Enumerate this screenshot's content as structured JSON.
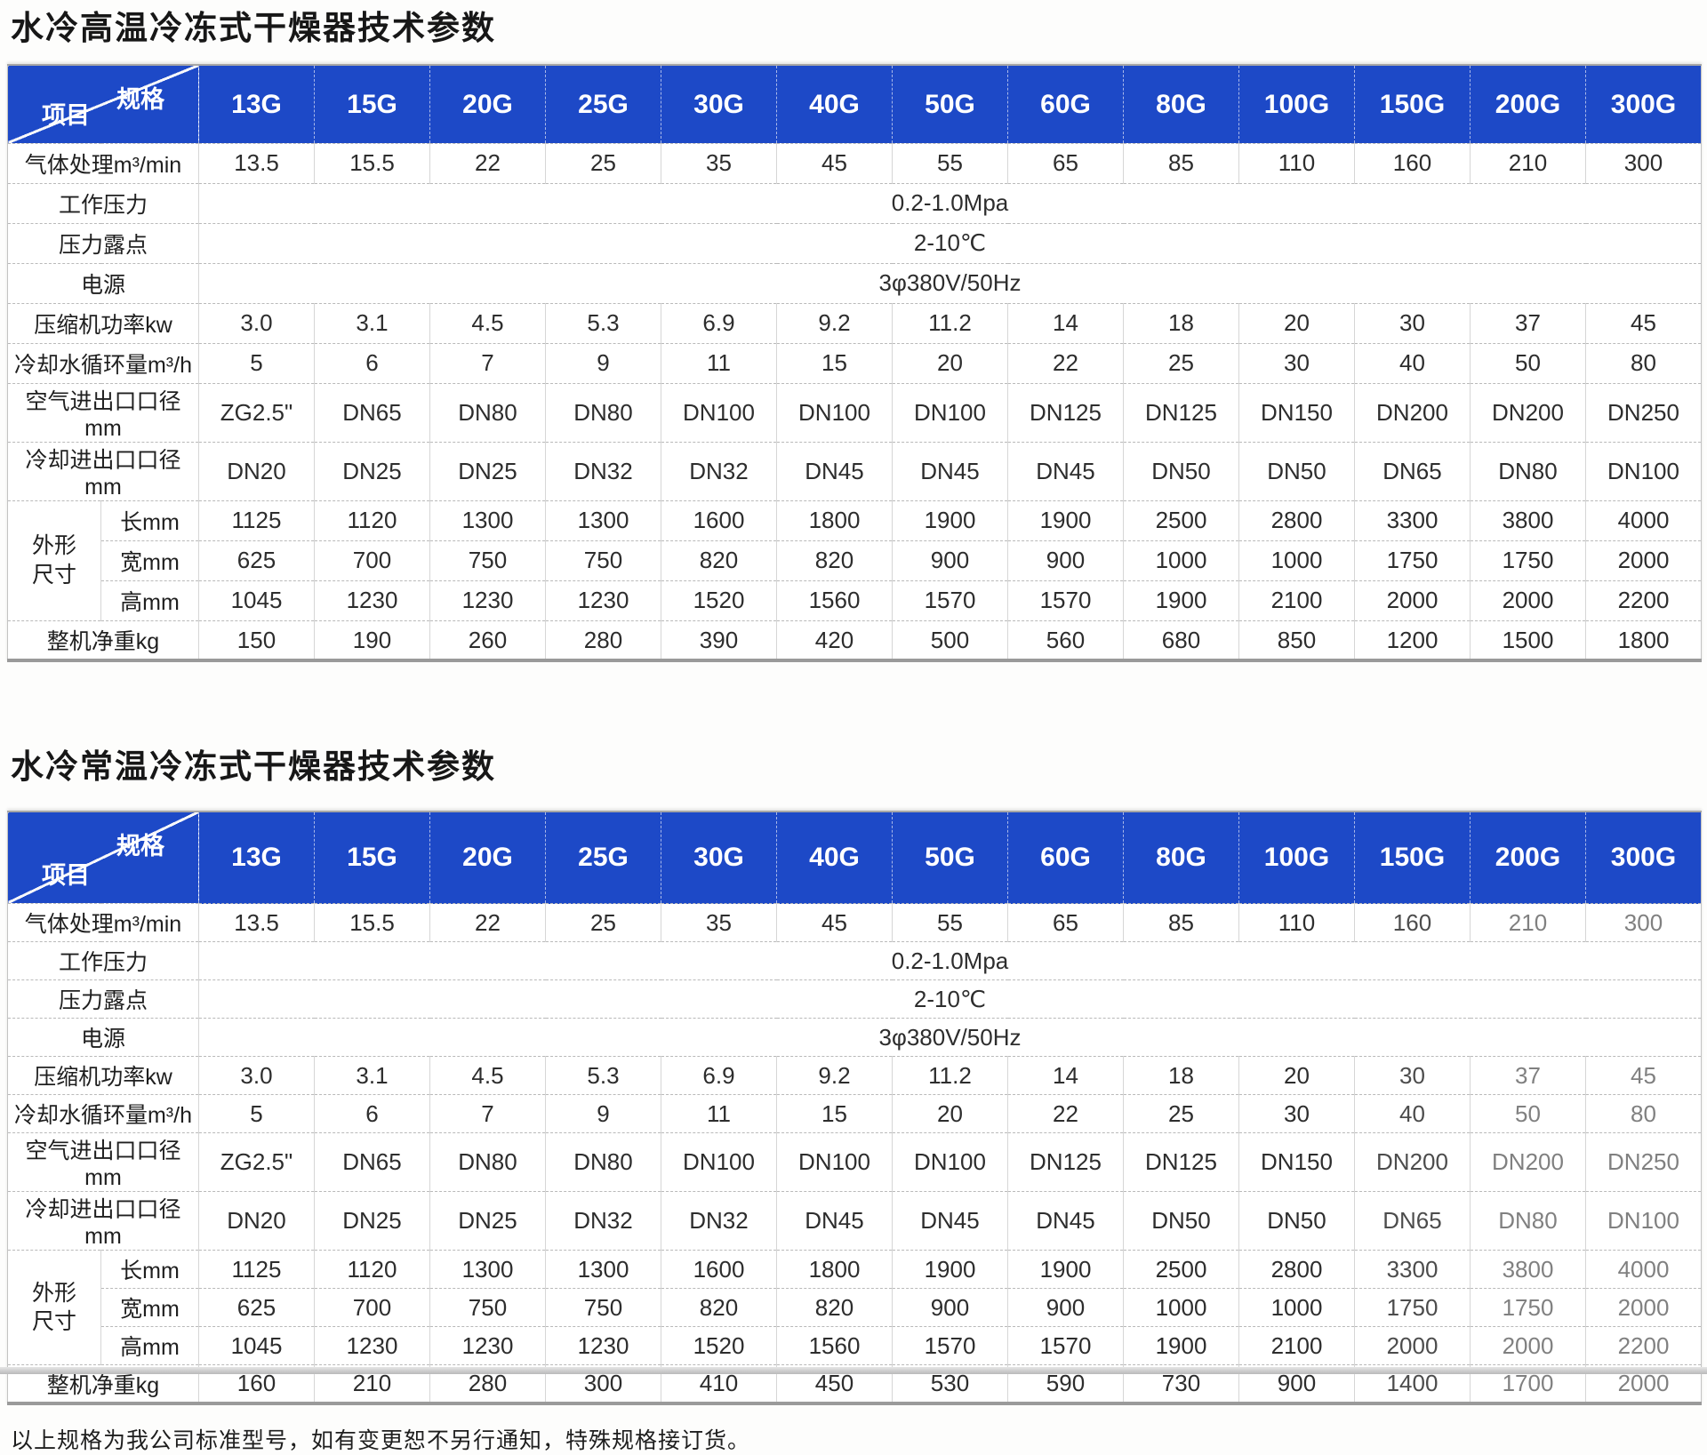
{
  "header": {
    "spec_label": "规格",
    "item_label": "项目",
    "models": [
      "13G",
      "15G",
      "20G",
      "25G",
      "30G",
      "40G",
      "50G",
      "60G",
      "80G",
      "100G",
      "150G",
      "200G",
      "300G"
    ]
  },
  "footer_note": "以上规格为我公司标准型号，如有变更恕不另行通知，特殊规格接订货。",
  "colors": {
    "header_blue": "#1d49c7",
    "header_text": "#ffffff"
  },
  "tables": [
    {
      "title": "水冷高温冷冻式干燥器技术参数",
      "rows": [
        {
          "type": "values",
          "label": "气体处理m³/min",
          "values": [
            "13.5",
            "15.5",
            "22",
            "25",
            "35",
            "45",
            "55",
            "65",
            "85",
            "110",
            "160",
            "210",
            "300"
          ]
        },
        {
          "type": "span",
          "label": "工作压力",
          "value": "0.2-1.0Mpa"
        },
        {
          "type": "span",
          "label": "压力露点",
          "value": "2-10℃"
        },
        {
          "type": "span",
          "label": "电源",
          "value": "3φ380V/50Hz"
        },
        {
          "type": "values",
          "label": "压缩机功率kw",
          "values": [
            "3.0",
            "3.1",
            "4.5",
            "5.3",
            "6.9",
            "9.2",
            "11.2",
            "14",
            "18",
            "20",
            "30",
            "37",
            "45"
          ]
        },
        {
          "type": "values",
          "label": "冷却水循环量m³/h",
          "values": [
            "5",
            "6",
            "7",
            "9",
            "11",
            "15",
            "20",
            "22",
            "25",
            "30",
            "40",
            "50",
            "80"
          ]
        },
        {
          "type": "values",
          "label": "空气进出口口径mm",
          "values": [
            "ZG2.5\"",
            "DN65",
            "DN80",
            "DN80",
            "DN100",
            "DN100",
            "DN100",
            "DN125",
            "DN125",
            "DN150",
            "DN200",
            "DN200",
            "DN250"
          ]
        },
        {
          "type": "values",
          "label": "冷却进出口口径mm",
          "values": [
            "DN20",
            "DN25",
            "DN25",
            "DN32",
            "DN32",
            "DN45",
            "DN45",
            "DN45",
            "DN50",
            "DN50",
            "DN65",
            "DN80",
            "DN100"
          ]
        },
        {
          "type": "group",
          "label": "外形尺寸",
          "subs": [
            {
              "label": "长mm",
              "values": [
                "1125",
                "1120",
                "1300",
                "1300",
                "1600",
                "1800",
                "1900",
                "1900",
                "2500",
                "2800",
                "3300",
                "3800",
                "4000"
              ]
            },
            {
              "label": "宽mm",
              "values": [
                "625",
                "700",
                "750",
                "750",
                "820",
                "820",
                "900",
                "900",
                "1000",
                "1000",
                "1750",
                "1750",
                "2000"
              ]
            },
            {
              "label": "高mm",
              "values": [
                "1045",
                "1230",
                "1230",
                "1230",
                "1520",
                "1560",
                "1570",
                "1570",
                "1900",
                "2100",
                "2000",
                "2000",
                "2200"
              ]
            }
          ]
        },
        {
          "type": "values",
          "label": "整机净重kg",
          "values": [
            "150",
            "190",
            "260",
            "280",
            "390",
            "420",
            "500",
            "560",
            "680",
            "850",
            "1200",
            "1500",
            "1800"
          ]
        }
      ]
    },
    {
      "title": "水冷常温冷冻式干燥器技术参数",
      "rows": [
        {
          "type": "values",
          "label": "气体处理m³/min",
          "values": [
            "13.5",
            "15.5",
            "22",
            "25",
            "35",
            "45",
            "55",
            "65",
            "85",
            "110",
            "160",
            "210",
            "300"
          ]
        },
        {
          "type": "span",
          "label": "工作压力",
          "value": "0.2-1.0Mpa"
        },
        {
          "type": "span",
          "label": "压力露点",
          "value": "2-10℃"
        },
        {
          "type": "span",
          "label": "电源",
          "value": "3φ380V/50Hz"
        },
        {
          "type": "values",
          "label": "压缩机功率kw",
          "values": [
            "3.0",
            "3.1",
            "4.5",
            "5.3",
            "6.9",
            "9.2",
            "11.2",
            "14",
            "18",
            "20",
            "30",
            "37",
            "45"
          ]
        },
        {
          "type": "values",
          "label": "冷却水循环量m³/h",
          "values": [
            "5",
            "6",
            "7",
            "9",
            "11",
            "15",
            "20",
            "22",
            "25",
            "30",
            "40",
            "50",
            "80"
          ]
        },
        {
          "type": "values",
          "label": "空气进出口口径mm",
          "values": [
            "ZG2.5\"",
            "DN65",
            "DN80",
            "DN80",
            "DN100",
            "DN100",
            "DN100",
            "DN125",
            "DN125",
            "DN150",
            "DN200",
            "DN200",
            "DN250"
          ]
        },
        {
          "type": "values",
          "label": "冷却进出口口径mm",
          "values": [
            "DN20",
            "DN25",
            "DN25",
            "DN32",
            "DN32",
            "DN45",
            "DN45",
            "DN45",
            "DN50",
            "DN50",
            "DN65",
            "DN80",
            "DN100"
          ]
        },
        {
          "type": "group",
          "label": "外形尺寸",
          "subs": [
            {
              "label": "长mm",
              "values": [
                "1125",
                "1120",
                "1300",
                "1300",
                "1600",
                "1800",
                "1900",
                "1900",
                "2500",
                "2800",
                "3300",
                "3800",
                "4000"
              ]
            },
            {
              "label": "宽mm",
              "values": [
                "625",
                "700",
                "750",
                "750",
                "820",
                "820",
                "900",
                "900",
                "1000",
                "1000",
                "1750",
                "1750",
                "2000"
              ]
            },
            {
              "label": "高mm",
              "values": [
                "1045",
                "1230",
                "1230",
                "1230",
                "1520",
                "1560",
                "1570",
                "1570",
                "1900",
                "2100",
                "2000",
                "2000",
                "2200"
              ]
            }
          ]
        },
        {
          "type": "values",
          "label": "整机净重kg",
          "values": [
            "160",
            "210",
            "280",
            "300",
            "410",
            "450",
            "530",
            "590",
            "730",
            "900",
            "1400",
            "1700",
            "2000"
          ]
        }
      ]
    }
  ]
}
